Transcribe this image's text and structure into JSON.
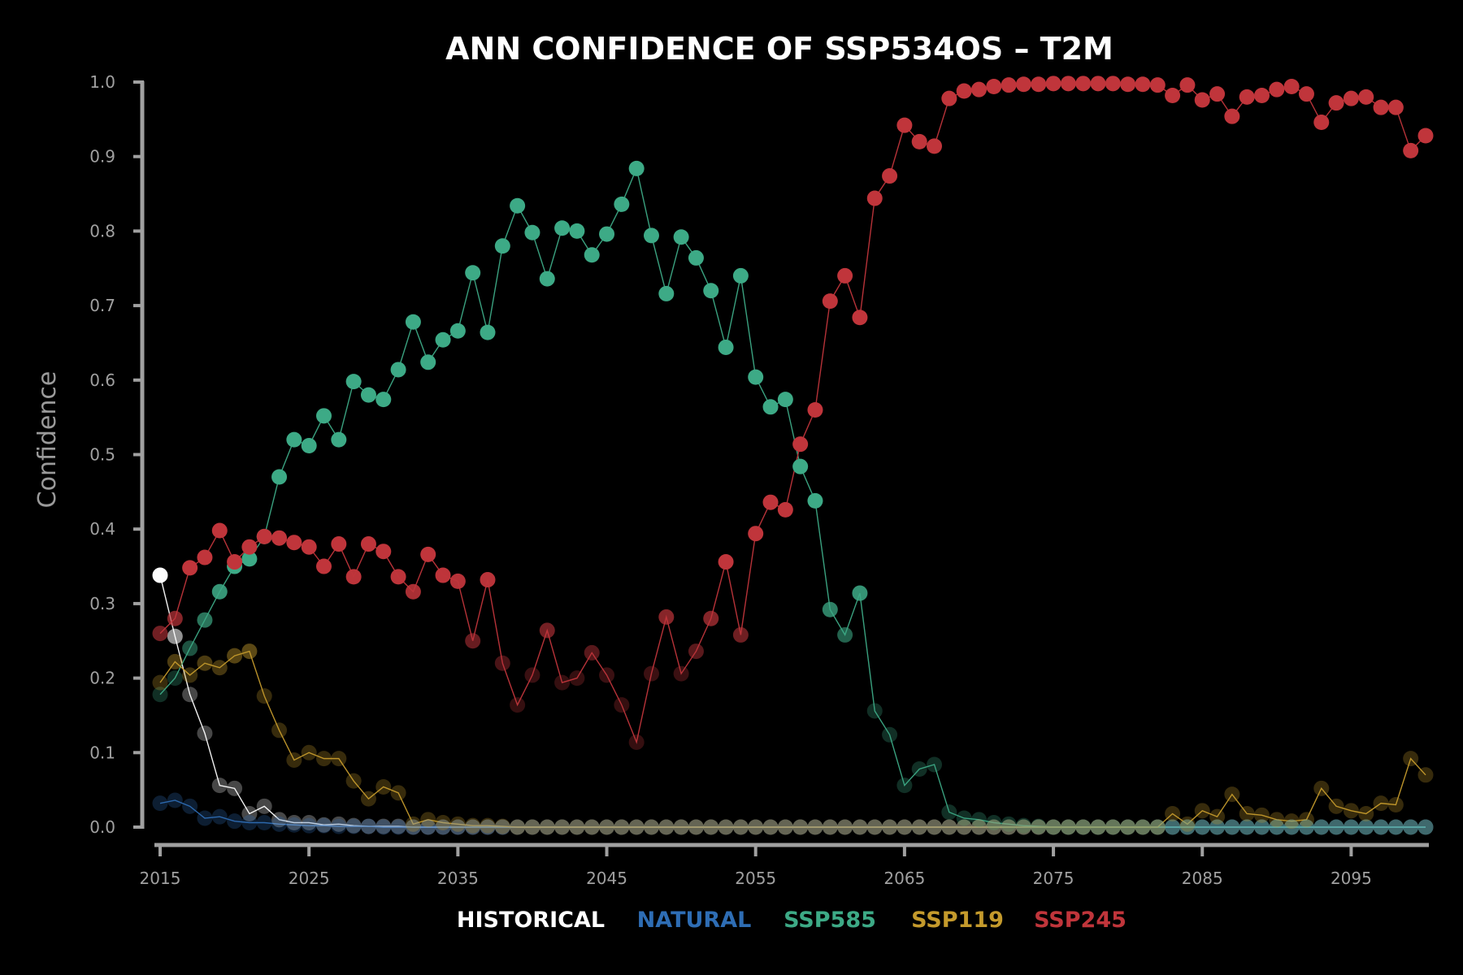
{
  "chart_data": {
    "type": "line",
    "title": "ANN CONFIDENCE OF SSP534OS – T2M",
    "xlabel": "",
    "ylabel": "Confidence",
    "xlim": [
      2015,
      2100
    ],
    "ylim": [
      0,
      1.0
    ],
    "x_ticks": [
      "2015",
      "2025",
      "2035",
      "2045",
      "2055",
      "2065",
      "2075",
      "2085",
      "2095"
    ],
    "y_ticks": [
      "0.0",
      "0.1",
      "0.2",
      "0.3",
      "0.4",
      "0.5",
      "0.6",
      "0.7",
      "0.8",
      "0.9",
      "1.0"
    ],
    "grid": false,
    "legend_placement": "bottom",
    "x": [
      2015,
      2016,
      2017,
      2018,
      2019,
      2020,
      2021,
      2022,
      2023,
      2024,
      2025,
      2026,
      2027,
      2028,
      2029,
      2030,
      2031,
      2032,
      2033,
      2034,
      2035,
      2036,
      2037,
      2038,
      2039,
      2040,
      2041,
      2042,
      2043,
      2044,
      2045,
      2046,
      2047,
      2048,
      2049,
      2050,
      2051,
      2052,
      2053,
      2054,
      2055,
      2056,
      2057,
      2058,
      2059,
      2060,
      2061,
      2062,
      2063,
      2064,
      2065,
      2066,
      2067,
      2068,
      2069,
      2070,
      2071,
      2072,
      2073,
      2074,
      2075,
      2076,
      2077,
      2078,
      2079,
      2080,
      2081,
      2082,
      2083,
      2084,
      2085,
      2086,
      2087,
      2088,
      2089,
      2090,
      2091,
      2092,
      2093,
      2094,
      2095,
      2096,
      2097,
      2098,
      2099,
      2100
    ],
    "series": [
      {
        "name": "HISTORICAL",
        "color": "#ffffff",
        "values": [
          0.338,
          0.256,
          0.178,
          0.126,
          0.056,
          0.052,
          0.018,
          0.028,
          0.01,
          0.006,
          0.006,
          0.003,
          0.004,
          0.002,
          0.001,
          0.001,
          0.001,
          0,
          0,
          0,
          0,
          0,
          0,
          0,
          0,
          0,
          0,
          0,
          0,
          0,
          0,
          0,
          0,
          0,
          0,
          0,
          0,
          0,
          0,
          0,
          0,
          0,
          0,
          0,
          0,
          0,
          0,
          0,
          0,
          0,
          0,
          0,
          0,
          0,
          0,
          0,
          0,
          0,
          0,
          0,
          0,
          0,
          0,
          0,
          0,
          0,
          0,
          0,
          0,
          0,
          0,
          0,
          0,
          0,
          0,
          0,
          0,
          0,
          0,
          0,
          0,
          0,
          0,
          0,
          0,
          0
        ]
      },
      {
        "name": "NATURAL",
        "color": "#2e6db4",
        "values": [
          0.032,
          0.036,
          0.028,
          0.012,
          0.014,
          0.008,
          0.006,
          0.006,
          0.004,
          0.003,
          0.002,
          0.002,
          0.001,
          0.001,
          0.001,
          0,
          0,
          0,
          0,
          0,
          0,
          0,
          0,
          0,
          0,
          0,
          0,
          0,
          0,
          0,
          0,
          0,
          0,
          0,
          0,
          0,
          0,
          0,
          0,
          0,
          0,
          0,
          0,
          0,
          0,
          0,
          0,
          0,
          0,
          0,
          0,
          0,
          0,
          0,
          0,
          0,
          0,
          0,
          0,
          0,
          0,
          0,
          0,
          0,
          0,
          0,
          0,
          0,
          0,
          0,
          0,
          0,
          0,
          0,
          0,
          0,
          0,
          0,
          0,
          0,
          0,
          0,
          0,
          0,
          0,
          0
        ]
      },
      {
        "name": "SSP585",
        "color": "#3daa86",
        "values": [
          0.178,
          0.2,
          0.24,
          0.278,
          0.316,
          0.35,
          0.36,
          0.39,
          0.47,
          0.52,
          0.512,
          0.552,
          0.52,
          0.598,
          0.58,
          0.574,
          0.614,
          0.678,
          0.624,
          0.654,
          0.666,
          0.744,
          0.664,
          0.78,
          0.834,
          0.798,
          0.736,
          0.804,
          0.8,
          0.768,
          0.796,
          0.836,
          0.884,
          0.794,
          0.716,
          0.792,
          0.764,
          0.72,
          0.644,
          0.74,
          0.604,
          0.564,
          0.574,
          0.484,
          0.438,
          0.292,
          0.258,
          0.314,
          0.156,
          0.124,
          0.056,
          0.078,
          0.084,
          0.02,
          0.012,
          0.01,
          0.006,
          0.004,
          0.002,
          0.001,
          0,
          0,
          0,
          0,
          0,
          0,
          0,
          0,
          0,
          0,
          0,
          0,
          0,
          0,
          0,
          0,
          0,
          0,
          0,
          0,
          0,
          0,
          0,
          0,
          0,
          0
        ]
      },
      {
        "name": "SSP119",
        "color": "#c49a2c",
        "values": [
          0.194,
          0.222,
          0.204,
          0.22,
          0.214,
          0.23,
          0.236,
          0.176,
          0.13,
          0.09,
          0.1,
          0.092,
          0.092,
          0.062,
          0.038,
          0.054,
          0.046,
          0.004,
          0.01,
          0.006,
          0.004,
          0.002,
          0.002,
          0.001,
          0,
          0,
          0,
          0,
          0,
          0,
          0,
          0,
          0,
          0,
          0,
          0,
          0,
          0,
          0,
          0,
          0,
          0,
          0,
          0,
          0,
          0,
          0,
          0,
          0,
          0,
          0,
          0,
          0,
          0,
          0,
          0,
          0,
          0,
          0,
          0,
          0,
          0,
          0,
          0,
          0,
          0,
          0,
          0,
          0.018,
          0.004,
          0.022,
          0.014,
          0.044,
          0.018,
          0.016,
          0.01,
          0.008,
          0.01,
          0.052,
          0.028,
          0.022,
          0.018,
          0.032,
          0.03,
          0.092,
          0.07
        ]
      },
      {
        "name": "SSP245",
        "color": "#c0353b",
        "values": [
          0.26,
          0.28,
          0.348,
          0.362,
          0.398,
          0.356,
          0.376,
          0.39,
          0.388,
          0.382,
          0.376,
          0.35,
          0.38,
          0.336,
          0.38,
          0.37,
          0.336,
          0.316,
          0.366,
          0.338,
          0.33,
          0.25,
          0.332,
          0.22,
          0.164,
          0.204,
          0.264,
          0.194,
          0.2,
          0.234,
          0.204,
          0.164,
          0.114,
          0.206,
          0.282,
          0.206,
          0.236,
          0.28,
          0.356,
          0.258,
          0.394,
          0.436,
          0.426,
          0.514,
          0.56,
          0.706,
          0.74,
          0.684,
          0.844,
          0.874,
          0.942,
          0.92,
          0.914,
          0.978,
          0.988,
          0.99,
          0.994,
          0.996,
          0.997,
          0.997,
          0.998,
          0.998,
          0.998,
          0.998,
          0.998,
          0.997,
          0.997,
          0.996,
          0.982,
          0.996,
          0.976,
          0.984,
          0.954,
          0.98,
          0.982,
          0.99,
          0.994,
          0.984,
          0.946,
          0.972,
          0.978,
          0.98,
          0.966,
          0.966,
          0.908,
          0.928
        ]
      }
    ]
  }
}
